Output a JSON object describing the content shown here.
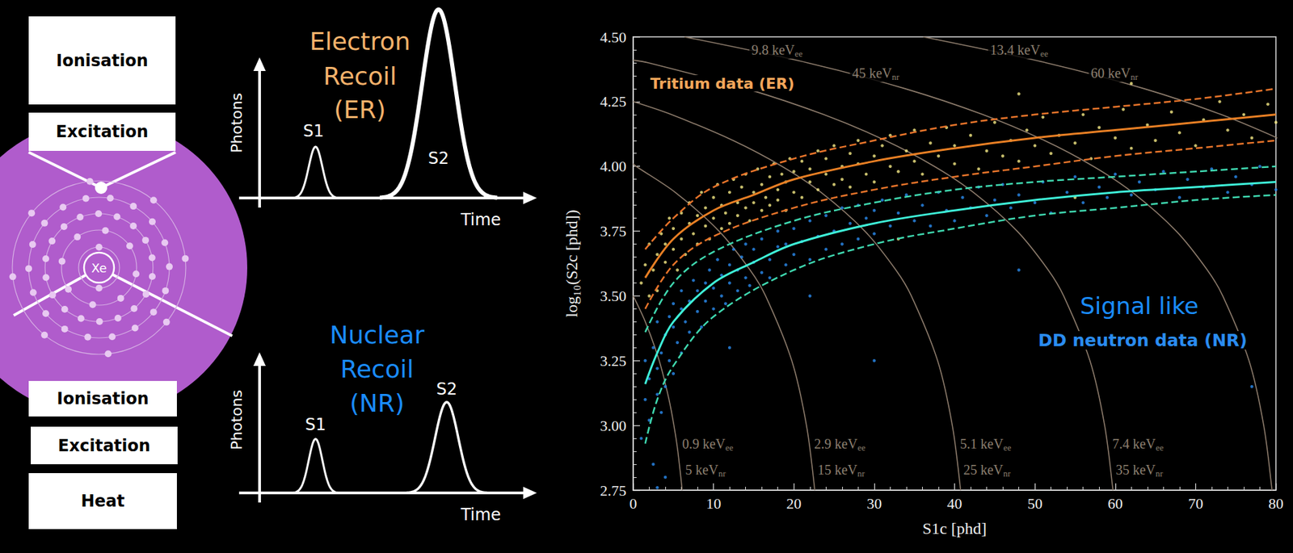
{
  "diagram": {
    "atom": "Xe",
    "upper_boxes": [
      "Ionisation",
      "Excitation"
    ],
    "lower_boxes": [
      "Ionisation",
      "Excitation",
      "Heat"
    ],
    "pulses": [
      {
        "title": "Electron Recoil (ER)",
        "color": "#f4b26b",
        "y_label": "Photons",
        "x_label": "Time",
        "peaks": [
          "S1",
          "S2"
        ]
      },
      {
        "title": "Nuclear Recoil (NR)",
        "color": "#1a8cff",
        "y_label": "Photons",
        "x_label": "Time",
        "peaks": [
          "S1",
          "S2"
        ]
      }
    ]
  },
  "chart_data": {
    "type": "scatter",
    "x_label": "S1c [phd]",
    "y_label": "log₁₀(S2c [phd])",
    "xlim": [
      0,
      80
    ],
    "xticks": [
      0,
      10,
      20,
      30,
      40,
      50,
      60,
      70,
      80
    ],
    "ylim": [
      2.75,
      4.5
    ],
    "yticks": [
      2.75,
      {
        "value": 3,
        "label": "3.00"
      },
      3.25,
      {
        "value": 3.5,
        "label": "3.50"
      },
      3.75,
      {
        "value": 4,
        "label": "4.00"
      },
      4.25,
      {
        "value": 4.5,
        "label": "4.50"
      }
    ],
    "grid": false,
    "annotations": [
      {
        "text": "Signal like",
        "color": "#1a8cff"
      }
    ],
    "contour_color": "#8c7b6b",
    "contours": [
      {
        "ee": {
          "text": "0.9 keV",
          "sub": "ee"
        },
        "nr": {
          "text": "5 keV",
          "sub": "nr"
        },
        "x": [
          0,
          1.51,
          3.24,
          4.46,
          5.07,
          5.56,
          6.1
        ],
        "values": [
          3.5,
          3.4,
          3.25,
          3.1,
          3.0,
          2.9,
          2.75
        ]
      },
      {
        "ee": {
          "text": "2.9 keV",
          "sub": "ee"
        },
        "nr": {
          "text": "15 keV",
          "sub": "nr"
        },
        "x": [
          0,
          0.38,
          5.22,
          10.69,
          14.55,
          16.48,
          19.74,
          21.57,
          22.6
        ],
        "values": [
          4.01,
          4.0,
          3.9,
          3.75,
          3.6,
          3.5,
          3.25,
          3.0,
          2.75
        ]
      },
      {
        "ee": {
          "text": "5.1 keV",
          "sub": "ee"
        },
        "nr": {
          "text": "25 keV",
          "sub": "nr"
        },
        "x": [
          0,
          4.76,
          12.43,
          18.53,
          23.37,
          28.84,
          32.7,
          34.62,
          37.89,
          39.72,
          40.75
        ],
        "values": [
          4.25,
          4.2,
          4.1,
          4.0,
          3.9,
          3.75,
          3.6,
          3.5,
          3.25,
          3.0,
          2.75
        ]
      },
      {
        "ee": {
          "text": "7.4 keV",
          "sub": "ee"
        },
        "nr": {
          "text": "35 keV",
          "sub": "nr"
        },
        "x": [
          0,
          1.9,
          14.06,
          23.72,
          31.39,
          37.49,
          42.33,
          47.8,
          51.66,
          53.58,
          56.85,
          58.68,
          59.71
        ],
        "values": [
          4.41,
          4.4,
          4.3,
          4.2,
          4.1,
          4.0,
          3.9,
          3.75,
          3.6,
          3.5,
          3.25,
          3.0,
          2.75
        ]
      },
      {
        "ee": {
          "text": "9.8 keV",
          "sub": "ee"
        },
        "nr": {
          "text": "45 keV",
          "sub": "nr"
        },
        "x": [
          6.38,
          21.7,
          33.85,
          43.52,
          51.19,
          57.29,
          62.13,
          67.6,
          71.46,
          73.38,
          76.65,
          78.48,
          79.51
        ],
        "values": [
          4.5,
          4.4,
          4.3,
          4.2,
          4.1,
          4.0,
          3.9,
          3.75,
          3.6,
          3.5,
          3.25,
          3.0,
          2.75
        ]
      },
      {
        "ee": {
          "text": "13.4 keV",
          "sub": "ee"
        },
        "nr": {
          "text": "60 keV",
          "sub": "nr"
        },
        "x": [
          36.1,
          51.4,
          63.6,
          73.2,
          80.9
        ],
        "values": [
          4.5,
          4.4,
          4.3,
          4.2,
          4.1
        ]
      }
    ],
    "series": [
      {
        "name": "Tritium data (ER)",
        "type": "scatter",
        "color": "#f5ea84",
        "marker": "circle",
        "x": [
          1,
          1.5,
          2,
          2,
          2.5,
          3,
          3,
          3.5,
          4,
          4,
          4.5,
          5,
          5,
          5.5,
          6,
          6,
          6.5,
          7,
          7,
          7.5,
          8,
          8,
          8.5,
          9,
          9,
          9.5,
          10,
          10,
          10.5,
          11,
          11,
          11.5,
          12,
          12,
          12.5,
          13,
          13,
          13.5,
          14,
          14,
          14.5,
          15,
          15,
          15.5,
          16,
          16,
          16.5,
          17,
          17,
          17.5,
          18,
          18,
          18.5,
          19,
          19,
          19.5,
          20,
          20,
          21,
          21,
          22,
          22,
          23,
          23,
          24,
          24,
          25,
          25,
          26,
          26,
          27,
          27,
          28,
          28,
          29,
          30,
          30,
          31,
          32,
          32,
          33,
          33,
          34,
          35,
          35,
          36,
          37,
          38,
          39,
          40,
          40,
          42,
          43,
          44,
          45,
          46,
          47,
          48,
          48,
          49,
          50,
          51,
          52,
          53,
          55,
          55,
          56,
          57,
          58,
          60,
          61,
          62,
          62,
          64,
          65,
          67,
          68,
          70,
          71,
          73,
          74,
          76,
          77,
          79,
          80
        ],
        "values": [
          3.55,
          3.62,
          3.5,
          3.7,
          3.6,
          3.66,
          3.52,
          3.74,
          3.63,
          3.7,
          3.8,
          3.68,
          3.76,
          3.6,
          3.82,
          3.72,
          3.66,
          3.78,
          3.86,
          3.74,
          3.81,
          3.7,
          3.9,
          3.77,
          3.84,
          3.72,
          3.88,
          3.8,
          3.93,
          3.76,
          3.85,
          3.82,
          3.9,
          3.78,
          3.95,
          3.86,
          3.81,
          3.92,
          3.84,
          3.97,
          3.79,
          3.9,
          3.86,
          3.99,
          3.83,
          3.93,
          3.88,
          3.96,
          3.85,
          4.01,
          3.91,
          3.87,
          3.97,
          3.83,
          3.94,
          4.03,
          3.9,
          3.98,
          3.88,
          4.02,
          3.94,
          3.99,
          4.06,
          3.91,
          3.97,
          4.03,
          3.93,
          4.08,
          4.0,
          3.95,
          4.05,
          3.92,
          4.01,
          4.1,
          3.97,
          4.04,
          3.94,
          4.08,
          4.0,
          4.12,
          3.98,
          3.72,
          4.06,
          4.02,
          4.14,
          3.97,
          4.09,
          4.04,
          4.15,
          4.01,
          4.08,
          4.12,
          3.99,
          4.06,
          4.17,
          4.04,
          4.1,
          4.02,
          4.28,
          4.14,
          4.08,
          4.19,
          4.05,
          4.12,
          4.09,
          3.88,
          4.2,
          4.03,
          4.15,
          4.11,
          4.22,
          4.07,
          4.32,
          4.16,
          4.1,
          4.21,
          4.13,
          4.08,
          4.18,
          4.25,
          4.14,
          4.2,
          4.11,
          4.24,
          4.17
        ]
      },
      {
        "name": "DD neutron data (NR)",
        "type": "scatter",
        "color": "#2a8cf0",
        "marker": "circle",
        "x": [
          1,
          1.5,
          1.5,
          2,
          2,
          2.5,
          2.5,
          3,
          3,
          3,
          3,
          3.5,
          3.5,
          4,
          4,
          4,
          4.5,
          4.5,
          5,
          5,
          5,
          5.5,
          6,
          6,
          6,
          6.5,
          7,
          7,
          7.5,
          8,
          8,
          8.5,
          9,
          9,
          9.5,
          10,
          10,
          10.5,
          11,
          11,
          11.5,
          12,
          12,
          12,
          12.5,
          13,
          13,
          13.5,
          14,
          14,
          14.5,
          15,
          15,
          16,
          16,
          17,
          17,
          18,
          18,
          19,
          19,
          20,
          20,
          21,
          22,
          22,
          22,
          23,
          24,
          24,
          25,
          26,
          26,
          27,
          28,
          28,
          29,
          30,
          30,
          30,
          31,
          32,
          33,
          34,
          35,
          36,
          37,
          38,
          39,
          40,
          41,
          42,
          43,
          44,
          45,
          46,
          47,
          48,
          48,
          50,
          51,
          52,
          54,
          55,
          56,
          58,
          59,
          60,
          62,
          63,
          65,
          66,
          68,
          69,
          71,
          72,
          74,
          75,
          77,
          77,
          78,
          80
        ],
        "values": [
          2.95,
          3.1,
          3.25,
          3.02,
          3.18,
          3.3,
          2.85,
          3.12,
          3.22,
          3.4,
          2.76,
          3.05,
          3.28,
          3.35,
          3.15,
          2.8,
          3.42,
          3.25,
          3.38,
          3.47,
          3.2,
          3.32,
          3.45,
          3.52,
          3.28,
          3.4,
          3.48,
          3.36,
          3.56,
          3.44,
          3.52,
          3.38,
          3.55,
          3.48,
          3.6,
          3.45,
          3.53,
          3.64,
          3.5,
          3.58,
          3.47,
          3.62,
          3.55,
          3.3,
          3.68,
          3.52,
          3.6,
          3.65,
          3.57,
          3.7,
          3.54,
          3.63,
          3.68,
          3.59,
          3.72,
          3.64,
          3.57,
          3.69,
          3.75,
          3.62,
          3.7,
          3.66,
          3.76,
          3.71,
          3.64,
          3.79,
          3.5,
          3.73,
          3.68,
          3.81,
          3.75,
          3.7,
          3.84,
          3.78,
          3.72,
          3.85,
          3.8,
          3.74,
          3.83,
          3.25,
          3.87,
          3.77,
          3.82,
          3.89,
          3.79,
          3.85,
          3.77,
          3.9,
          3.83,
          3.79,
          3.88,
          3.84,
          3.92,
          3.81,
          3.87,
          3.93,
          3.84,
          3.89,
          3.6,
          3.86,
          3.94,
          3.82,
          3.9,
          3.96,
          3.86,
          3.92,
          3.88,
          3.97,
          3.89,
          3.94,
          3.91,
          3.98,
          3.88,
          3.95,
          3.92,
          3.99,
          3.9,
          3.96,
          3.93,
          3.15,
          4.0,
          3.91
        ]
      },
      {
        "type": "line",
        "color": "#e87f24",
        "line_style": "solid",
        "x": [
          1.5,
          5,
          10,
          15,
          20,
          30,
          40,
          50,
          60,
          70,
          80
        ],
        "values": [
          3.57,
          3.72,
          3.83,
          3.89,
          3.95,
          4.02,
          4.07,
          4.11,
          4.14,
          4.17,
          4.2
        ]
      },
      {
        "type": "line",
        "color": "#e8742a",
        "line_style": "dashed",
        "x": [
          1.5,
          5,
          10,
          20,
          30,
          40,
          50,
          60,
          70,
          80
        ],
        "values": [
          3.68,
          3.8,
          3.92,
          4.03,
          4.1,
          4.16,
          4.2,
          4.23,
          4.26,
          4.3
        ]
      },
      {
        "type": "line",
        "color": "#e8742a",
        "line_style": "dashed",
        "x": [
          1.5,
          5,
          10,
          20,
          30,
          40,
          50,
          60,
          70,
          80
        ],
        "values": [
          3.45,
          3.62,
          3.73,
          3.84,
          3.91,
          3.96,
          4.0,
          4.04,
          4.07,
          4.1
        ]
      },
      {
        "type": "line",
        "color": "#3ef0d8",
        "line_style": "solid",
        "x": [
          1.5,
          3,
          5,
          10,
          15,
          20,
          30,
          40,
          50,
          60,
          70,
          80
        ],
        "values": [
          3.16,
          3.28,
          3.4,
          3.55,
          3.63,
          3.7,
          3.78,
          3.83,
          3.87,
          3.9,
          3.92,
          3.94
        ]
      },
      {
        "type": "line",
        "color": "#3fd9b0",
        "line_style": "dashed",
        "x": [
          1.5,
          5,
          10,
          20,
          30,
          40,
          50,
          60,
          70,
          80
        ],
        "values": [
          3.36,
          3.55,
          3.67,
          3.79,
          3.86,
          3.91,
          3.94,
          3.96,
          3.98,
          4.0
        ]
      },
      {
        "type": "line",
        "color": "#3fd9b0",
        "line_style": "dashed",
        "x": [
          1.5,
          3,
          5,
          10,
          20,
          30,
          40,
          50,
          60,
          70,
          80
        ],
        "values": [
          2.93,
          3.1,
          3.23,
          3.42,
          3.6,
          3.7,
          3.76,
          3.81,
          3.84,
          3.87,
          3.89
        ]
      }
    ]
  }
}
